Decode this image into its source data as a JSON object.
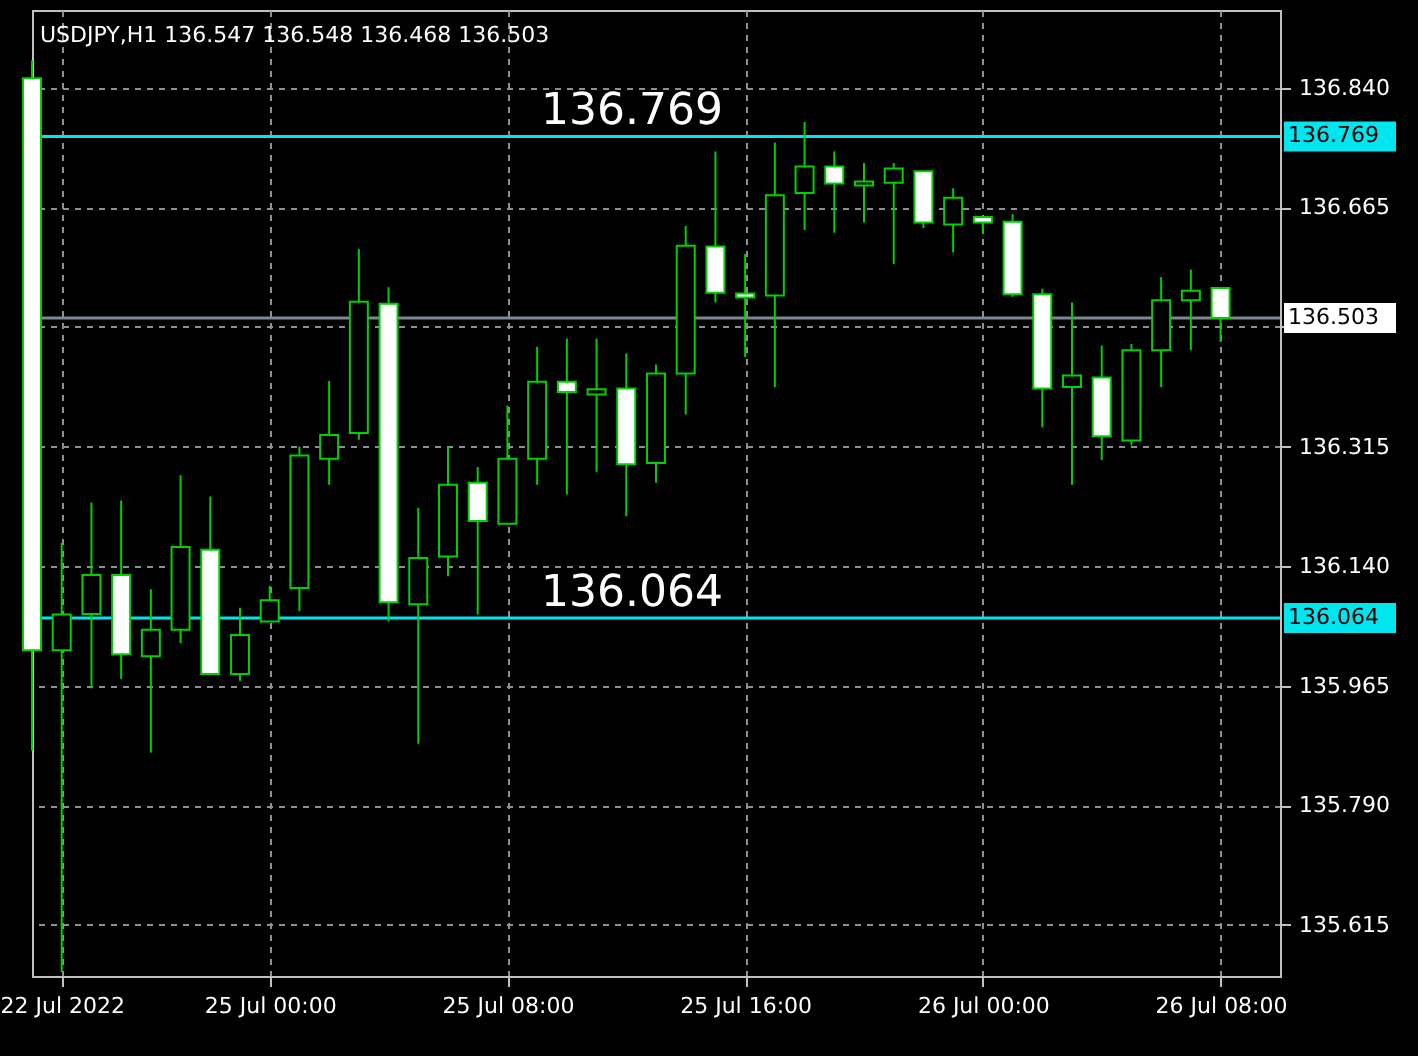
{
  "chart_data": {
    "type": "candlestick",
    "title": "USDJPY,H1  136.547 136.548 136.468 136.503",
    "categories": [
      null,
      "22 Jul 2022",
      null,
      null,
      null,
      null,
      null,
      null,
      "25 Jul 00:00",
      null,
      null,
      null,
      null,
      null,
      null,
      null,
      "25 Jul 08:00",
      null,
      null,
      null,
      null,
      null,
      null,
      null,
      "25 Jul 16:00",
      null,
      null,
      null,
      null,
      null,
      null,
      null,
      "26 Jul 00:00",
      null,
      null,
      null,
      null,
      null,
      null,
      null,
      "26 Jul 08:00"
    ],
    "ohlc": [
      [
        136.854,
        136.88,
        135.87,
        136.017
      ],
      [
        136.017,
        136.174,
        135.546,
        136.069
      ],
      [
        136.07,
        136.233,
        135.961,
        136.127
      ],
      [
        136.127,
        136.236,
        135.975,
        136.011
      ],
      [
        136.008,
        136.106,
        135.867,
        136.047
      ],
      [
        136.047,
        136.273,
        136.027,
        136.168
      ],
      [
        136.164,
        136.242,
        135.982,
        135.982
      ],
      [
        135.982,
        136.079,
        135.972,
        136.039
      ],
      [
        136.059,
        136.111,
        136.059,
        136.09
      ],
      [
        136.108,
        136.315,
        136.074,
        136.302
      ],
      [
        136.297,
        136.411,
        136.259,
        136.332
      ],
      [
        136.335,
        136.604,
        136.325,
        136.527
      ],
      [
        136.524,
        136.548,
        136.059,
        136.087
      ],
      [
        136.084,
        136.225,
        135.88,
        136.152
      ],
      [
        136.154,
        136.315,
        136.125,
        136.259
      ],
      [
        136.262,
        136.285,
        136.069,
        136.206
      ],
      [
        136.202,
        136.375,
        136.202,
        136.297
      ],
      [
        136.297,
        136.461,
        136.259,
        136.41
      ],
      [
        136.41,
        136.473,
        136.245,
        136.395
      ],
      [
        136.391,
        136.473,
        136.278,
        136.399
      ],
      [
        136.4,
        136.451,
        136.213,
        136.289
      ],
      [
        136.291,
        136.435,
        136.262,
        136.422
      ],
      [
        136.422,
        136.638,
        136.362,
        136.609
      ],
      [
        136.608,
        136.747,
        136.526,
        136.54
      ],
      [
        136.539,
        136.597,
        136.446,
        136.533
      ],
      [
        136.536,
        136.76,
        136.402,
        136.683
      ],
      [
        136.686,
        136.79,
        136.632,
        136.725
      ],
      [
        136.725,
        136.747,
        136.628,
        136.7
      ],
      [
        136.697,
        136.73,
        136.643,
        136.703
      ],
      [
        136.701,
        136.73,
        136.582,
        136.722
      ],
      [
        136.718,
        136.718,
        136.635,
        136.643
      ],
      [
        136.64,
        136.693,
        136.599,
        136.679
      ],
      [
        136.651,
        136.651,
        136.626,
        136.643
      ],
      [
        136.644,
        136.655,
        136.534,
        136.538
      ],
      [
        136.538,
        136.546,
        136.343,
        136.4
      ],
      [
        136.402,
        136.526,
        136.259,
        136.419
      ],
      [
        136.416,
        136.463,
        136.295,
        136.33
      ],
      [
        136.324,
        136.465,
        136.317,
        136.456
      ],
      [
        136.456,
        136.563,
        136.402,
        136.529
      ],
      [
        136.529,
        136.574,
        136.456,
        136.543
      ],
      [
        136.547,
        136.548,
        136.468,
        136.503
      ]
    ],
    "color": "#00d000",
    "ylim": [
      135.54,
      136.954
    ],
    "yticks": [
      {
        "value": 136.84,
        "label": "136.840"
      },
      136.665,
      {
        "value": 136.49,
        "label": null
      },
      136.315,
      {
        "value": 136.14,
        "label": "136.140"
      },
      135.965,
      {
        "value": 135.79,
        "label": "135.790"
      },
      135.615
    ],
    "ref_lines": [
      {
        "axis": "y",
        "value": 136.769,
        "label": "136.769",
        "color": "#00e5ee"
      },
      {
        "axis": "y",
        "value": 136.064,
        "label": "136.064",
        "color": "#00e5ee"
      },
      {
        "axis": "y",
        "value": 136.503,
        "label": "136.503",
        "color": "#7f8890"
      }
    ],
    "annotations": [
      {
        "text": "136.769",
        "y": 136.769
      },
      {
        "text": "136.064",
        "y": 136.064
      }
    ],
    "grid": true
  }
}
